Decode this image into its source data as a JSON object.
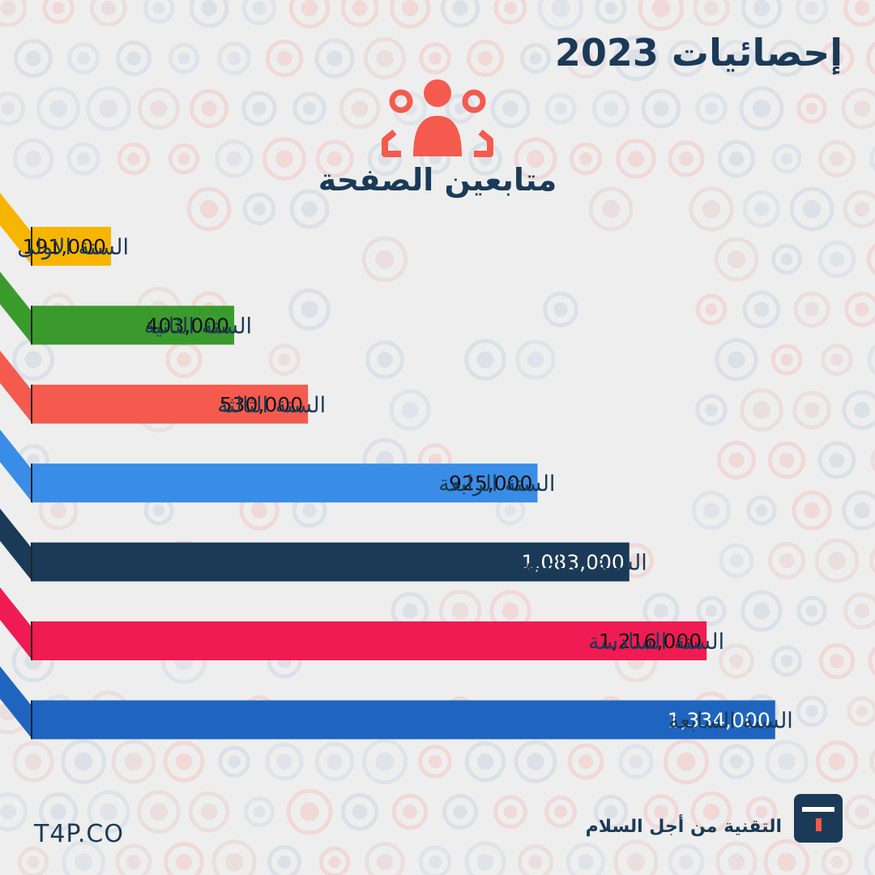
{
  "header": {
    "title": "إحصائيات 2023",
    "subtitle": "متابعين الصفحة",
    "icon": "people-group-icon"
  },
  "chart_data": {
    "type": "bar",
    "orientation": "horizontal",
    "title": "متابعين الصفحة",
    "categories": [
      "السنة الاولى",
      "السنة الثانية",
      "السنة الثالثة",
      "السنة الرابعة",
      "السنة الخامسة",
      "السنة السادسة",
      "السنة السابعة"
    ],
    "values": [
      191000,
      403000,
      530000,
      925000,
      1083000,
      1216000,
      1334000
    ],
    "value_labels": [
      "191,000",
      "403,000",
      "530,000",
      "925,000",
      "1,083,000",
      "1,216,000",
      "1,334,000"
    ],
    "colors": [
      "#f7b500",
      "#3a9b2c",
      "#f55a4e",
      "#3a8de6",
      "#1b3a57",
      "#ef1b52",
      "#1f65c0"
    ],
    "value_text_colors": [
      "#111111",
      "#111111",
      "#111111",
      "#111111",
      "#ffffff",
      "#111111",
      "#ffffff"
    ],
    "xlim": [
      0,
      1450000
    ],
    "grid": false,
    "legend": "none"
  },
  "footer": {
    "brand": "T4P.CO",
    "slogan": "التقنية من أجل السلام",
    "logo_icon": "t4p-logo-icon"
  },
  "colors": {
    "background": "#eeeeee",
    "text": "#1b3a57",
    "accent": "#f55a4e"
  }
}
